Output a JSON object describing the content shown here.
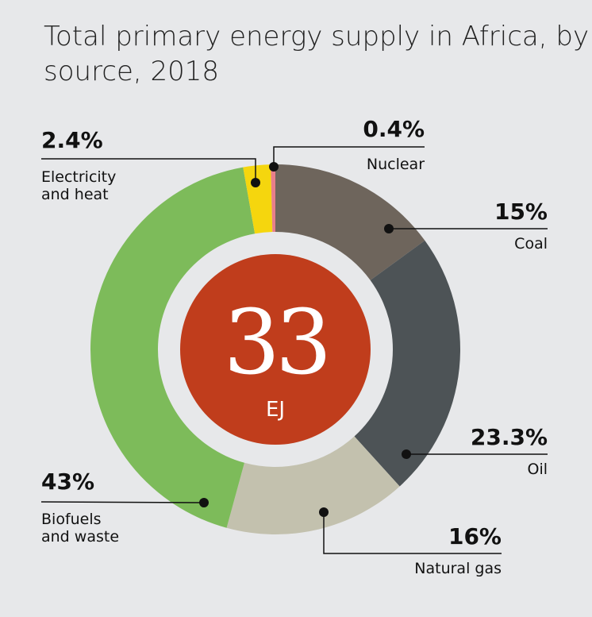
{
  "chart_data": {
    "type": "donut",
    "title": "Total primary energy supply in Africa, by source, 2018",
    "categories": [
      "Coal",
      "Oil",
      "Natural gas",
      "Biofuels and waste",
      "Electricity and heat",
      "Nuclear"
    ],
    "values": [
      15,
      23.3,
      16,
      43,
      2.4,
      0.4
    ],
    "value_labels": [
      "15%",
      "23.3%",
      "16%",
      "43%",
      "2.4%",
      "0.4%"
    ],
    "colors": [
      "#6e655c",
      "#4d5356",
      "#c3c1ae",
      "#7dbb5a",
      "#f5d60e",
      "#e87f8a"
    ],
    "total": 33,
    "total_unit": "EJ"
  }
}
